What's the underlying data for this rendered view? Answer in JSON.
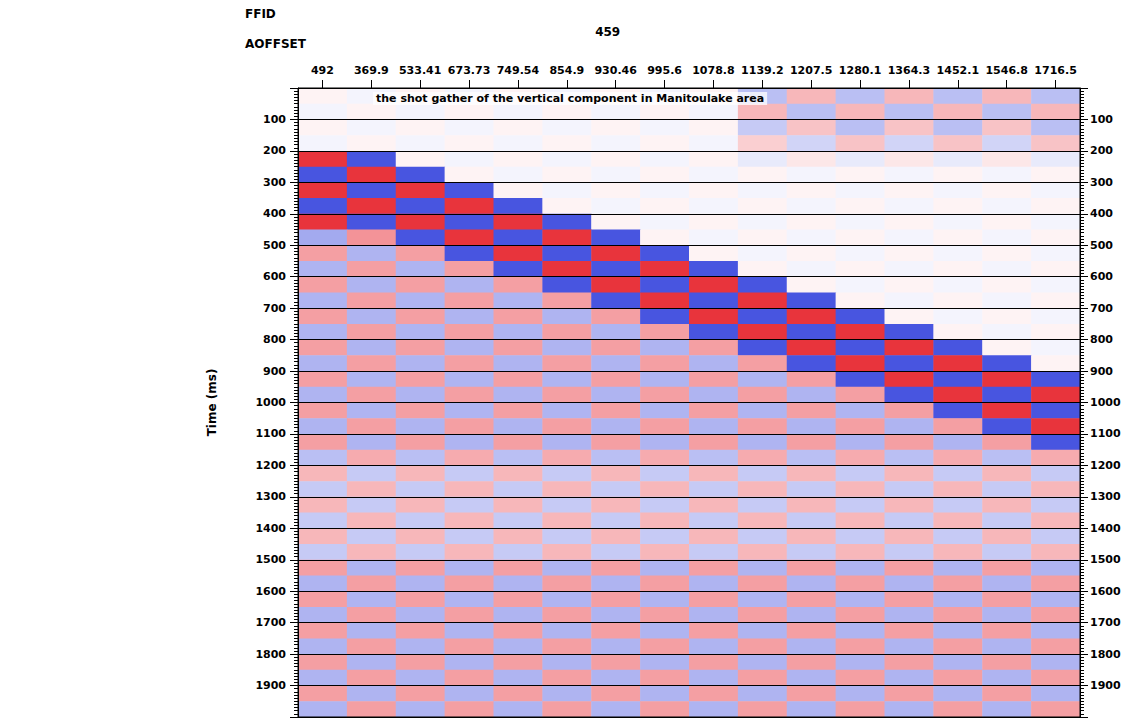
{
  "chart_data": {
    "type": "heatmap",
    "title": "the shot gather of the vertical component in Manitoulake area",
    "annotations": [
      {
        "text": "FFID"
      },
      {
        "text": "459"
      }
    ],
    "x_label": "AOFFSET",
    "y_label": "Time (ms)",
    "x": [
      "492",
      "369.9",
      "533.41",
      "673.73",
      "749.54",
      "854.9",
      "930.46",
      "995.6",
      "1078.8",
      "1139.2",
      "1207.5",
      "1280.1",
      "1364.3",
      "1452.1",
      "1546.8",
      "1716.5"
    ],
    "ylim": [
      0,
      2000
    ],
    "yticks": [
      100,
      200,
      300,
      400,
      500,
      600,
      700,
      800,
      900,
      1000,
      1100,
      1200,
      1300,
      1400,
      1500,
      1600,
      1700,
      1800,
      1900
    ],
    "y2lim": [
      0,
      2000
    ],
    "y2ticks": [
      100,
      200,
      300,
      400,
      500,
      600,
      700,
      800,
      900,
      1000,
      1100,
      1200,
      1300,
      1400,
      1500,
      1600,
      1700,
      1800,
      1900
    ],
    "grid": true,
    "zlim": [
      -1,
      1
    ],
    "time_edges": [
      0,
      50,
      100,
      150,
      200,
      250,
      300,
      350,
      400,
      450,
      500,
      550,
      600,
      650,
      700,
      750,
      800,
      850,
      900,
      950,
      1000,
      1050,
      1100,
      1150,
      1200,
      1250,
      1300,
      1350,
      1400,
      1450,
      1500,
      1550,
      1600,
      1650,
      1700,
      1750,
      1800,
      1850,
      1900,
      1950,
      2000
    ],
    "cells": [
      [
        0.05,
        -0.05,
        0.05,
        -0.05,
        0.05,
        -0.05,
        0.05,
        -0.05,
        0.05,
        -0.3,
        0.3,
        -0.3,
        0.3,
        -0.3,
        0.3,
        -0.3
      ],
      [
        -0.05,
        0.05,
        -0.05,
        0.05,
        -0.05,
        0.05,
        -0.05,
        0.05,
        -0.05,
        0.3,
        -0.3,
        0.3,
        -0.3,
        0.3,
        -0.3,
        0.3
      ],
      [
        0.05,
        -0.05,
        0.05,
        -0.05,
        0.05,
        -0.05,
        0.05,
        -0.05,
        0.05,
        -0.25,
        0.25,
        -0.3,
        0.25,
        -0.3,
        0.25,
        -0.3
      ],
      [
        -0.05,
        0.05,
        -0.05,
        0.05,
        -0.05,
        0.05,
        -0.05,
        0.05,
        -0.05,
        0.2,
        -0.2,
        0.25,
        -0.2,
        0.25,
        -0.2,
        0.25
      ],
      [
        0.85,
        -0.8,
        0.05,
        -0.05,
        0.05,
        -0.05,
        0.05,
        -0.05,
        0.05,
        -0.1,
        0.1,
        -0.1,
        0.1,
        -0.1,
        0.1,
        -0.1
      ],
      [
        -0.8,
        0.85,
        -0.8,
        0.05,
        -0.05,
        0.05,
        -0.05,
        0.05,
        -0.05,
        0.05,
        -0.05,
        0.05,
        -0.05,
        0.05,
        -0.05,
        0.05
      ],
      [
        0.85,
        -0.8,
        0.85,
        -0.8,
        0.05,
        -0.05,
        0.05,
        -0.05,
        0.05,
        -0.05,
        0.05,
        -0.05,
        0.05,
        -0.05,
        0.05,
        -0.05
      ],
      [
        -0.8,
        0.85,
        -0.8,
        0.85,
        -0.8,
        0.05,
        -0.05,
        0.05,
        -0.05,
        0.05,
        -0.05,
        0.05,
        -0.05,
        0.05,
        -0.05,
        0.05
      ],
      [
        0.85,
        -0.8,
        0.85,
        -0.8,
        0.85,
        -0.8,
        0.05,
        -0.05,
        0.05,
        -0.05,
        0.05,
        -0.05,
        0.05,
        -0.05,
        0.05,
        -0.05
      ],
      [
        -0.4,
        0.45,
        -0.8,
        0.85,
        -0.8,
        0.85,
        -0.8,
        0.05,
        -0.05,
        0.05,
        -0.05,
        0.05,
        -0.05,
        0.05,
        -0.05,
        0.05
      ],
      [
        0.4,
        -0.35,
        0.4,
        -0.8,
        0.85,
        -0.8,
        0.85,
        -0.8,
        0.05,
        -0.05,
        0.05,
        -0.05,
        0.05,
        -0.05,
        0.05,
        -0.05
      ],
      [
        -0.35,
        0.4,
        -0.35,
        0.4,
        -0.8,
        0.85,
        -0.8,
        0.85,
        -0.8,
        0.05,
        -0.05,
        0.05,
        -0.05,
        0.05,
        -0.05,
        0.05
      ],
      [
        0.4,
        -0.35,
        0.4,
        -0.35,
        0.4,
        -0.8,
        0.85,
        -0.8,
        0.85,
        -0.8,
        0.05,
        -0.05,
        0.05,
        -0.05,
        0.05,
        -0.05
      ],
      [
        -0.35,
        0.4,
        -0.35,
        0.4,
        -0.35,
        0.4,
        -0.8,
        0.85,
        -0.8,
        0.85,
        -0.8,
        0.05,
        -0.05,
        0.05,
        -0.05,
        0.05
      ],
      [
        0.4,
        -0.35,
        0.4,
        -0.35,
        0.4,
        -0.35,
        0.4,
        -0.8,
        0.85,
        -0.8,
        0.85,
        -0.8,
        0.05,
        -0.05,
        0.05,
        -0.05
      ],
      [
        -0.35,
        0.4,
        -0.35,
        0.4,
        -0.35,
        0.4,
        -0.35,
        0.4,
        -0.8,
        0.85,
        -0.8,
        0.85,
        -0.8,
        0.05,
        -0.05,
        0.05
      ],
      [
        0.4,
        -0.35,
        0.4,
        -0.35,
        0.4,
        -0.35,
        0.4,
        -0.35,
        0.4,
        -0.8,
        0.85,
        -0.8,
        0.85,
        -0.8,
        0.05,
        -0.05
      ],
      [
        -0.35,
        0.4,
        -0.35,
        0.4,
        -0.35,
        0.4,
        -0.35,
        0.4,
        -0.35,
        0.4,
        -0.8,
        0.85,
        -0.8,
        0.85,
        -0.8,
        0.05
      ],
      [
        0.4,
        -0.35,
        0.4,
        -0.35,
        0.4,
        -0.35,
        0.4,
        -0.35,
        0.4,
        -0.35,
        0.4,
        -0.8,
        0.85,
        -0.8,
        0.85,
        -0.8
      ],
      [
        -0.35,
        0.4,
        -0.35,
        0.4,
        -0.35,
        0.4,
        -0.35,
        0.4,
        -0.35,
        0.4,
        -0.35,
        0.4,
        -0.8,
        0.85,
        -0.8,
        0.85
      ],
      [
        0.4,
        -0.35,
        0.4,
        -0.35,
        0.4,
        -0.35,
        0.4,
        -0.35,
        0.4,
        -0.35,
        0.4,
        -0.35,
        0.4,
        -0.8,
        0.85,
        -0.8
      ],
      [
        -0.35,
        0.4,
        -0.35,
        0.4,
        -0.35,
        0.4,
        -0.35,
        0.4,
        -0.35,
        0.4,
        -0.35,
        0.4,
        -0.35,
        0.4,
        -0.8,
        0.85
      ],
      [
        0.4,
        -0.35,
        0.4,
        -0.35,
        0.4,
        -0.35,
        0.4,
        -0.35,
        0.4,
        -0.35,
        0.4,
        -0.35,
        0.4,
        -0.35,
        0.4,
        -0.8
      ],
      [
        -0.3,
        0.35,
        -0.3,
        0.35,
        -0.3,
        0.35,
        -0.3,
        0.35,
        -0.3,
        0.35,
        -0.3,
        0.35,
        -0.3,
        0.35,
        -0.3,
        0.35
      ],
      [
        0.3,
        -0.25,
        0.3,
        -0.25,
        0.3,
        -0.25,
        0.3,
        -0.25,
        0.3,
        -0.25,
        0.3,
        -0.25,
        0.3,
        -0.25,
        0.3,
        -0.25
      ],
      [
        -0.25,
        0.3,
        -0.25,
        0.3,
        -0.25,
        0.3,
        -0.25,
        0.3,
        -0.25,
        0.3,
        -0.25,
        0.3,
        -0.25,
        0.3,
        -0.25,
        0.3
      ],
      [
        0.3,
        -0.25,
        0.3,
        -0.25,
        0.3,
        -0.25,
        0.3,
        -0.25,
        0.3,
        -0.25,
        0.3,
        -0.25,
        0.3,
        -0.25,
        0.3,
        -0.25
      ],
      [
        -0.25,
        0.3,
        -0.25,
        0.3,
        -0.25,
        0.3,
        -0.25,
        0.3,
        -0.25,
        0.3,
        -0.25,
        0.3,
        -0.25,
        0.3,
        -0.25,
        0.3
      ],
      [
        0.3,
        -0.25,
        0.3,
        -0.25,
        0.3,
        -0.25,
        0.3,
        -0.25,
        0.3,
        -0.25,
        0.3,
        -0.25,
        0.3,
        -0.25,
        0.3,
        -0.25
      ],
      [
        -0.25,
        0.3,
        -0.25,
        0.3,
        -0.25,
        0.3,
        -0.25,
        0.3,
        -0.25,
        0.3,
        -0.25,
        0.3,
        -0.25,
        0.3,
        -0.25,
        0.3
      ],
      [
        0.4,
        -0.35,
        0.4,
        -0.35,
        0.4,
        -0.35,
        0.4,
        -0.35,
        0.4,
        -0.35,
        0.4,
        -0.35,
        0.4,
        -0.35,
        0.4,
        -0.35
      ],
      [
        -0.35,
        0.4,
        -0.35,
        0.4,
        -0.35,
        0.4,
        -0.35,
        0.4,
        -0.35,
        0.4,
        -0.35,
        0.4,
        -0.35,
        0.4,
        -0.35,
        0.4
      ],
      [
        0.4,
        -0.35,
        0.4,
        -0.35,
        0.4,
        -0.35,
        0.4,
        -0.35,
        0.4,
        -0.35,
        0.4,
        -0.35,
        0.4,
        -0.35,
        0.4,
        -0.35
      ],
      [
        -0.35,
        0.4,
        -0.35,
        0.4,
        -0.35,
        0.4,
        -0.35,
        0.4,
        -0.35,
        0.4,
        -0.35,
        0.4,
        -0.35,
        0.4,
        -0.35,
        0.4
      ],
      [
        0.4,
        -0.35,
        0.4,
        -0.35,
        0.4,
        -0.35,
        0.4,
        -0.35,
        0.4,
        -0.35,
        0.4,
        -0.35,
        0.4,
        -0.35,
        0.4,
        -0.35
      ],
      [
        -0.35,
        0.4,
        -0.35,
        0.4,
        -0.35,
        0.4,
        -0.35,
        0.4,
        -0.35,
        0.4,
        -0.35,
        0.4,
        -0.35,
        0.4,
        -0.35,
        0.4
      ],
      [
        0.4,
        -0.35,
        0.4,
        -0.35,
        0.4,
        -0.35,
        0.4,
        -0.35,
        0.4,
        -0.35,
        0.4,
        -0.35,
        0.4,
        -0.35,
        0.4,
        -0.35
      ],
      [
        -0.35,
        0.4,
        -0.35,
        0.4,
        -0.35,
        0.4,
        -0.35,
        0.4,
        -0.35,
        0.4,
        -0.35,
        0.4,
        -0.35,
        0.4,
        -0.35,
        0.4
      ],
      [
        0.4,
        -0.35,
        0.4,
        -0.35,
        0.4,
        -0.35,
        0.4,
        -0.35,
        0.4,
        -0.35,
        0.4,
        -0.35,
        0.4,
        -0.35,
        0.4,
        -0.35
      ],
      [
        -0.35,
        0.4,
        -0.35,
        0.4,
        -0.35,
        0.4,
        -0.35,
        0.4,
        -0.35,
        0.4,
        -0.35,
        0.4,
        -0.35,
        0.4,
        -0.35,
        0.4
      ]
    ]
  }
}
